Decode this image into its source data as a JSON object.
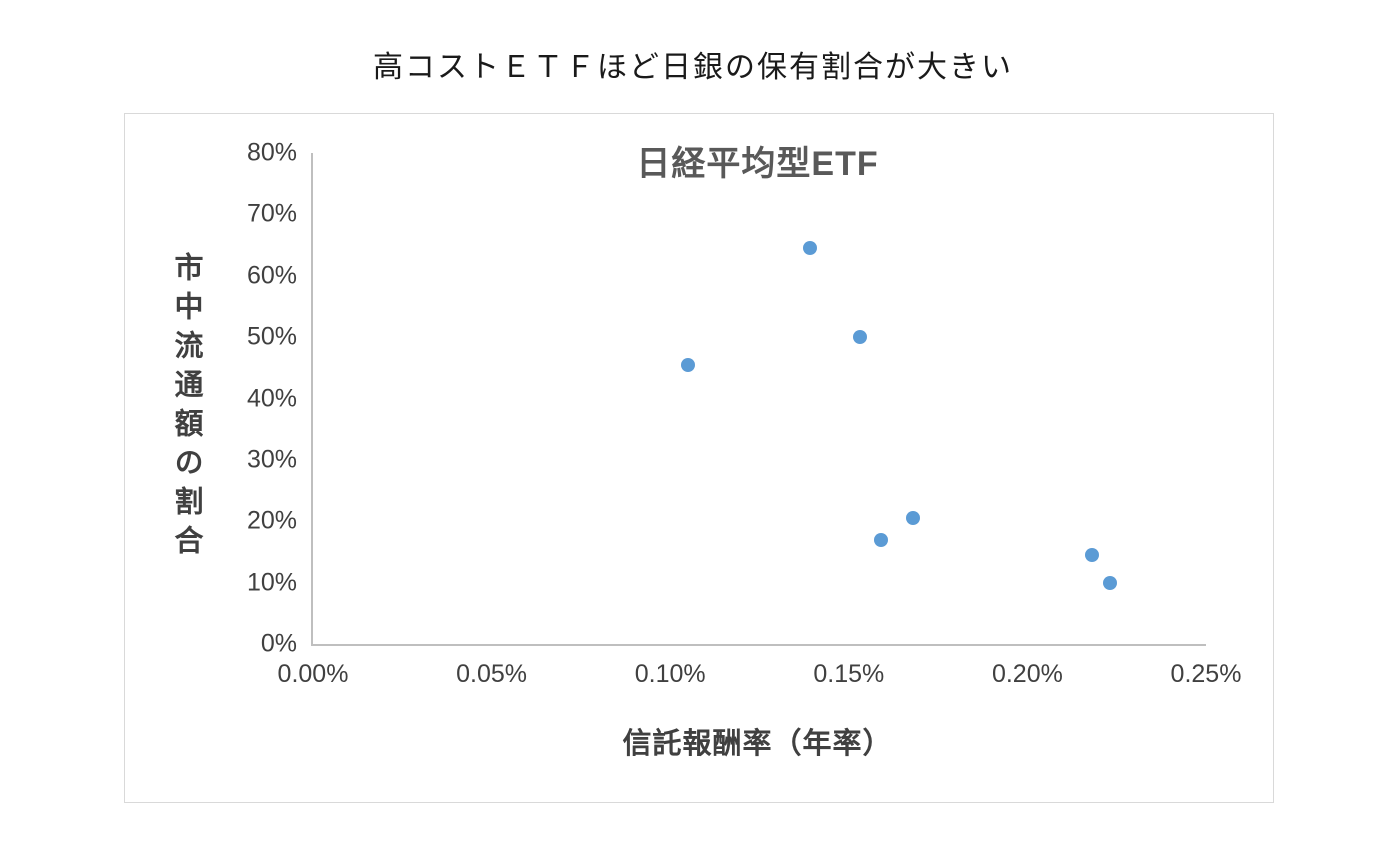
{
  "page": {
    "title": "高コストＥＴＦほど日銀の保有割合が大きい"
  },
  "colors": {
    "point": "#5B9BD5",
    "axis_line": "#BFBFBF",
    "tick_text": "#404040",
    "chart_title_text": "#595959",
    "chart_border": "#D9D9D9"
  },
  "chart_data": {
    "type": "scatter",
    "title": "日経平均型ETF",
    "xlabel": "信託報酬率（年率）",
    "ylabel": "市中流通額の割合",
    "xlim": [
      0,
      0.25
    ],
    "ylim": [
      0,
      80
    ],
    "x_ticks": [
      0,
      0.05,
      0.1,
      0.15,
      0.2,
      0.25
    ],
    "x_tick_labels": [
      "0.00%",
      "0.05%",
      "0.10%",
      "0.15%",
      "0.20%",
      "0.25%"
    ],
    "y_ticks": [
      0,
      10,
      20,
      30,
      40,
      50,
      60,
      70,
      80
    ],
    "y_tick_labels": [
      "0%",
      "10%",
      "20%",
      "30%",
      "40%",
      "50%",
      "60%",
      "70%",
      "80%"
    ],
    "grid": false,
    "legend": false,
    "series": [
      {
        "name": "日経平均型ETF",
        "color": "#5B9BD5",
        "points": [
          {
            "x": 0.105,
            "y": 45.5
          },
          {
            "x": 0.139,
            "y": 64.5
          },
          {
            "x": 0.153,
            "y": 50.0
          },
          {
            "x": 0.159,
            "y": 17.0
          },
          {
            "x": 0.168,
            "y": 20.5
          },
          {
            "x": 0.218,
            "y": 14.5
          },
          {
            "x": 0.223,
            "y": 10.0
          }
        ]
      }
    ]
  }
}
